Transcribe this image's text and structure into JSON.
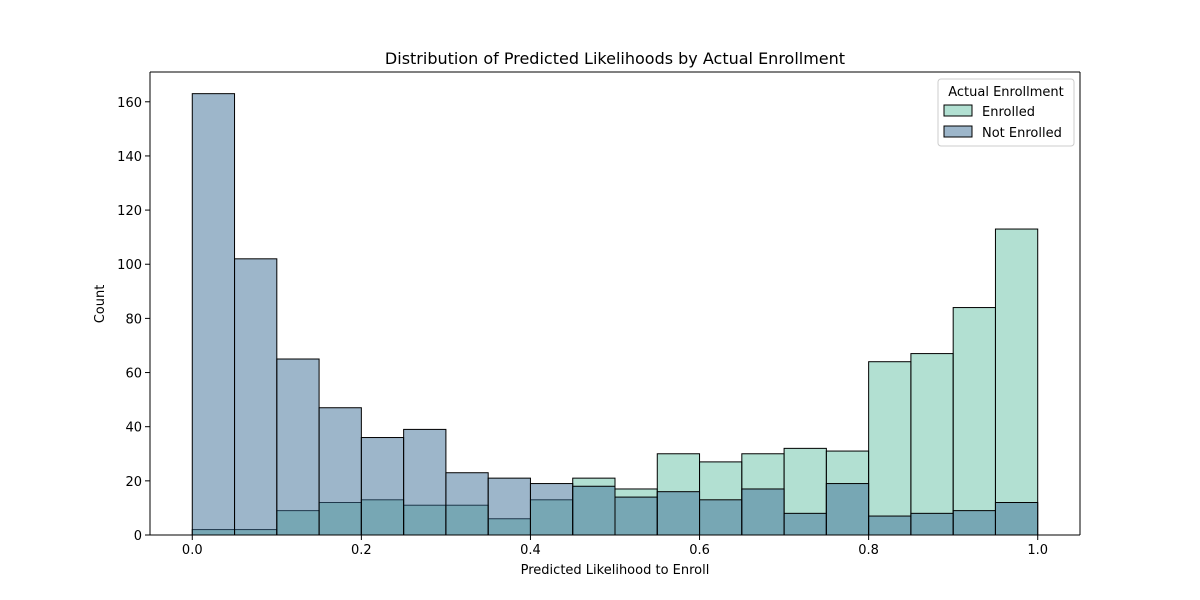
{
  "chart_data": {
    "type": "bar",
    "title": "Distribution of Predicted Likelihoods by Actual Enrollment",
    "xlabel": "Predicted Likelihood to Enroll",
    "ylabel": "Count",
    "bin_edges": [
      0.0,
      0.05,
      0.1,
      0.15,
      0.2,
      0.25,
      0.3,
      0.35,
      0.4,
      0.45,
      0.5,
      0.55,
      0.6,
      0.65,
      0.7,
      0.75,
      0.8,
      0.85,
      0.9,
      0.95,
      1.0
    ],
    "series": [
      {
        "name": "Enrolled",
        "color": "#66c2a5",
        "values": [
          2,
          2,
          9,
          12,
          13,
          11,
          11,
          6,
          13,
          21,
          17,
          30,
          27,
          30,
          32,
          31,
          64,
          67,
          84,
          113
        ]
      },
      {
        "name": "Not Enrolled",
        "color": "#3b6e96",
        "values": [
          163,
          102,
          65,
          47,
          36,
          39,
          23,
          21,
          19,
          18,
          14,
          16,
          13,
          17,
          8,
          19,
          7,
          8,
          9,
          12
        ]
      }
    ],
    "xlim": [
      -0.05,
      1.05
    ],
    "ylim": [
      0,
      171
    ],
    "xticks": [
      0.0,
      0.2,
      0.4,
      0.6,
      0.8,
      1.0
    ],
    "xtick_labels": [
      "0.0",
      "0.2",
      "0.4",
      "0.6",
      "0.8",
      "1.0"
    ],
    "yticks": [
      0,
      20,
      40,
      60,
      80,
      100,
      120,
      140,
      160
    ],
    "ytick_labels": [
      "0",
      "20",
      "40",
      "60",
      "80",
      "100",
      "120",
      "140",
      "160"
    ],
    "legend": {
      "title": "Actual Enrollment",
      "placement": "top-right",
      "entries": [
        "Enrolled",
        "Not Enrolled"
      ]
    },
    "grid": false
  }
}
